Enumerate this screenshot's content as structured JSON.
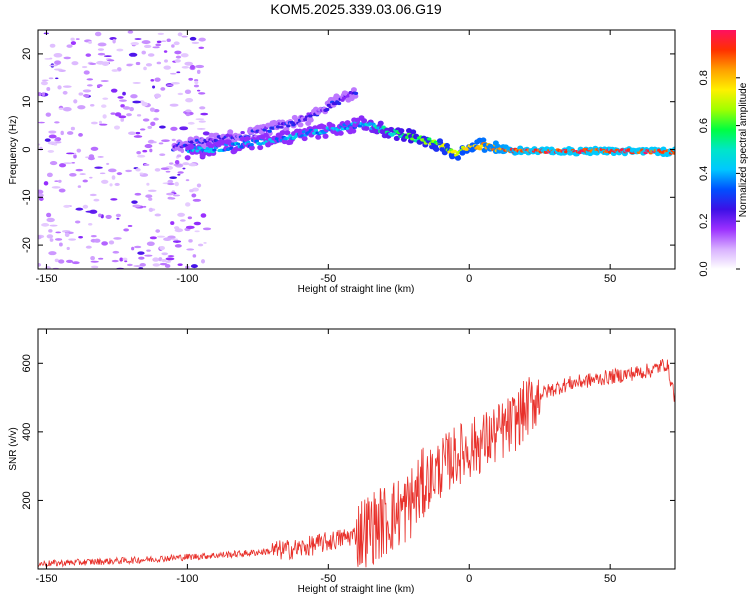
{
  "title": "KOM5.2025.339.03.06.G19",
  "chart_data": [
    {
      "type": "heatmap",
      "name": "spectrogram",
      "xlabel": "Height of straight line (km)",
      "ylabel": "Frequency (Hz)",
      "xlim": [
        -153,
        73
      ],
      "ylim": [
        -25,
        25
      ],
      "xticks": [
        -150,
        -100,
        -50,
        0,
        50
      ],
      "yticks": [
        -20,
        -10,
        0,
        10,
        20
      ],
      "colorbar": {
        "label": "Normalized spectral amplitude",
        "range": [
          0,
          1
        ],
        "ticks": [
          "0.0",
          "0.2",
          "0.4",
          "0.6",
          "0.8"
        ],
        "colors": [
          "#ffffff",
          "#d8b0ff",
          "#9b30ff",
          "#3c10e6",
          "#0050ff",
          "#00c8ff",
          "#00e6c8",
          "#00ff40",
          "#a0ff00",
          "#fff000",
          "#ffa000",
          "#ff3000",
          "#ff1060"
        ]
      },
      "ridges": [
        {
          "name": "upper-branch",
          "points": [
            [
              -105,
              0.5
            ],
            [
              -90,
              2.0
            ],
            [
              -75,
              3.5
            ],
            [
              -60,
              6.0
            ],
            [
              -50,
              9.0
            ],
            [
              -40,
              12.0
            ]
          ],
          "amplitude": 0.25
        },
        {
          "name": "main-branch",
          "points": [
            [
              -100,
              -0.5
            ],
            [
              -80,
              1.0
            ],
            [
              -60,
              3.0
            ],
            [
              -45,
              4.5
            ],
            [
              -38,
              5.5
            ],
            [
              -30,
              4.0
            ],
            [
              -20,
              2.5
            ],
            [
              -10,
              1.0
            ],
            [
              -5,
              -1.0
            ],
            [
              0,
              0.5
            ],
            [
              5,
              0.8
            ],
            [
              15,
              -0.2
            ],
            [
              30,
              -0.3
            ],
            [
              50,
              -0.3
            ],
            [
              73,
              -0.5
            ]
          ],
          "amplitude": 0.6
        }
      ]
    },
    {
      "type": "line",
      "name": "snr",
      "xlabel": "Height of straight line (km)",
      "ylabel": "SNR (v/v)",
      "xlim": [
        -153,
        73
      ],
      "ylim": [
        0,
        700
      ],
      "xticks": [
        -150,
        -100,
        -50,
        0,
        50
      ],
      "yticks": [
        200,
        400,
        600
      ],
      "color": "#e8302a",
      "trend": {
        "x": [
          -153,
          -120,
          -100,
          -80,
          -60,
          -50,
          -40,
          -30,
          -22,
          -15,
          -5,
          5,
          15,
          25,
          35,
          50,
          65,
          70,
          73
        ],
        "y": [
          15,
          25,
          35,
          45,
          60,
          80,
          100,
          140,
          180,
          260,
          330,
          370,
          420,
          510,
          540,
          560,
          580,
          600,
          500
        ]
      }
    }
  ]
}
